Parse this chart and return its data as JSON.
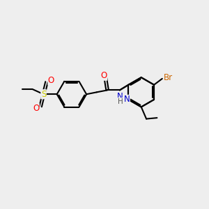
{
  "bg_color": "#eeeeee",
  "bond_color": "#000000",
  "bond_width": 1.5,
  "dbo": 0.07,
  "atom_colors": {
    "O": "#ff0000",
    "N": "#0000cc",
    "S": "#cccc00",
    "Br": "#cc6600",
    "C": "#000000",
    "H": "#555555"
  },
  "font_size": 8.5,
  "font_size_small": 7.5,
  "fig_bg": "#eeeeee"
}
